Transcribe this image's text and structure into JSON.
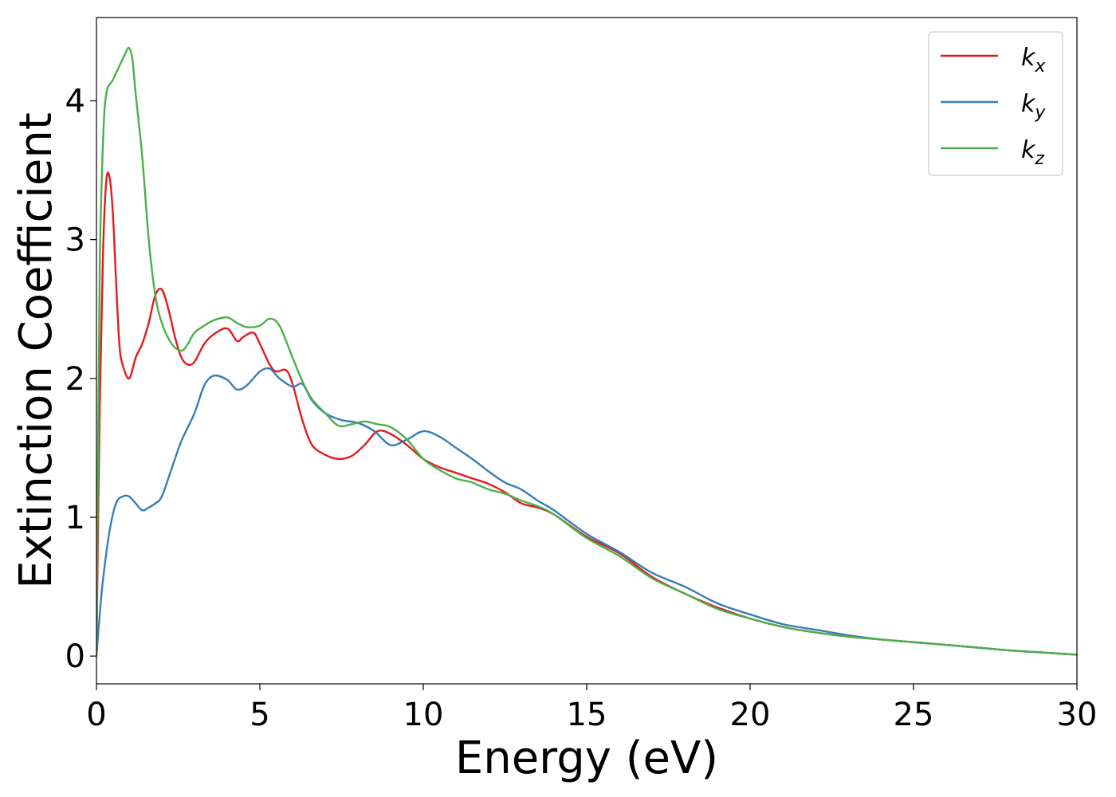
{
  "chart_data": {
    "type": "line",
    "title": "",
    "xlabel": "Energy (eV)",
    "ylabel": "Extinction Coefficient",
    "xlim": [
      0,
      30
    ],
    "ylim": [
      -0.2,
      4.6
    ],
    "xticks": [
      0,
      5,
      10,
      15,
      20,
      25,
      30
    ],
    "yticks": [
      0,
      1,
      2,
      3,
      4
    ],
    "xtick_labels": [
      "0",
      "5",
      "10",
      "15",
      "20",
      "25",
      "30"
    ],
    "ytick_labels": [
      "0",
      "1",
      "2",
      "3",
      "4"
    ],
    "grid": false,
    "legend_position": "top-right",
    "series": [
      {
        "name": "k_x",
        "label_base": "k",
        "label_sub": "x",
        "color": "#e41a1c",
        "x": [
          0,
          0.1,
          0.2,
          0.3,
          0.4,
          0.5,
          0.6,
          0.7,
          0.8,
          1.0,
          1.2,
          1.4,
          1.6,
          1.8,
          2.0,
          2.2,
          2.4,
          2.6,
          2.8,
          3.0,
          3.3,
          3.6,
          4.0,
          4.3,
          4.5,
          4.8,
          5.0,
          5.3,
          5.5,
          5.8,
          6.0,
          6.3,
          6.6,
          7.0,
          7.4,
          7.8,
          8.2,
          8.6,
          9.0,
          9.5,
          10.0,
          10.5,
          11.0,
          11.5,
          12.0,
          12.5,
          13.0,
          13.5,
          14.0,
          15.0,
          16.0,
          17.0,
          18.0,
          19.0,
          20.0,
          21.0,
          22.0,
          23.0,
          24.0,
          25.0,
          26.0,
          27.0,
          28.0,
          29.0,
          30.0
        ],
        "y": [
          0,
          1.8,
          2.9,
          3.42,
          3.45,
          3.2,
          2.7,
          2.25,
          2.1,
          2.0,
          2.15,
          2.25,
          2.4,
          2.6,
          2.64,
          2.5,
          2.3,
          2.15,
          2.1,
          2.12,
          2.25,
          2.32,
          2.36,
          2.27,
          2.3,
          2.33,
          2.25,
          2.1,
          2.05,
          2.06,
          1.96,
          1.7,
          1.52,
          1.45,
          1.42,
          1.44,
          1.52,
          1.62,
          1.6,
          1.52,
          1.42,
          1.36,
          1.32,
          1.28,
          1.24,
          1.18,
          1.1,
          1.07,
          1.02,
          0.86,
          0.74,
          0.57,
          0.45,
          0.35,
          0.27,
          0.21,
          0.17,
          0.14,
          0.12,
          0.1,
          0.08,
          0.06,
          0.04,
          0.025,
          0.01
        ]
      },
      {
        "name": "k_y",
        "label_base": "k",
        "label_sub": "y",
        "color": "#377eb8",
        "x": [
          0,
          0.1,
          0.2,
          0.4,
          0.6,
          0.8,
          1.0,
          1.2,
          1.4,
          1.6,
          1.8,
          2.0,
          2.3,
          2.6,
          3.0,
          3.3,
          3.6,
          4.0,
          4.3,
          4.6,
          5.0,
          5.3,
          5.6,
          6.0,
          6.3,
          6.6,
          7.0,
          7.5,
          8.0,
          8.5,
          9.0,
          9.5,
          10.0,
          10.5,
          11.0,
          11.5,
          12.0,
          12.5,
          13.0,
          13.5,
          14.0,
          15.0,
          16.0,
          17.0,
          18.0,
          19.0,
          20.0,
          21.0,
          22.0,
          23.0,
          24.0,
          25.0,
          26.0,
          27.0,
          28.0,
          29.0,
          30.0
        ],
        "y": [
          0,
          0.3,
          0.55,
          0.9,
          1.1,
          1.15,
          1.15,
          1.1,
          1.05,
          1.07,
          1.1,
          1.15,
          1.35,
          1.55,
          1.75,
          1.95,
          2.02,
          1.99,
          1.92,
          1.95,
          2.05,
          2.07,
          2.0,
          1.94,
          1.96,
          1.84,
          1.75,
          1.7,
          1.68,
          1.62,
          1.52,
          1.56,
          1.62,
          1.58,
          1.5,
          1.42,
          1.33,
          1.25,
          1.2,
          1.12,
          1.05,
          0.88,
          0.75,
          0.6,
          0.5,
          0.38,
          0.3,
          0.23,
          0.19,
          0.15,
          0.12,
          0.1,
          0.08,
          0.06,
          0.04,
          0.025,
          0.01
        ]
      },
      {
        "name": "k_z",
        "label_base": "k",
        "label_sub": "z",
        "color": "#4daf4a",
        "x": [
          0,
          0.05,
          0.1,
          0.2,
          0.3,
          0.5,
          0.7,
          0.9,
          1.0,
          1.1,
          1.2,
          1.4,
          1.6,
          1.8,
          2.0,
          2.3,
          2.6,
          2.8,
          3.0,
          3.3,
          3.6,
          4.0,
          4.3,
          4.6,
          5.0,
          5.3,
          5.6,
          6.0,
          6.3,
          6.6,
          7.0,
          7.4,
          7.8,
          8.2,
          8.6,
          9.0,
          9.5,
          10.0,
          10.5,
          11.0,
          11.5,
          12.0,
          12.5,
          13.0,
          13.5,
          14.0,
          15.0,
          16.0,
          17.0,
          18.0,
          19.0,
          20.0,
          21.0,
          22.0,
          23.0,
          24.0,
          25.0,
          26.0,
          27.0,
          28.0,
          29.0,
          30.0
        ],
        "y": [
          0,
          1.5,
          2.8,
          3.7,
          4.05,
          4.15,
          4.25,
          4.35,
          4.38,
          4.3,
          4.05,
          3.6,
          3.0,
          2.6,
          2.4,
          2.25,
          2.2,
          2.25,
          2.33,
          2.38,
          2.42,
          2.44,
          2.4,
          2.37,
          2.38,
          2.43,
          2.38,
          2.15,
          1.98,
          1.85,
          1.75,
          1.66,
          1.67,
          1.69,
          1.67,
          1.65,
          1.56,
          1.42,
          1.34,
          1.28,
          1.25,
          1.2,
          1.17,
          1.12,
          1.08,
          1.02,
          0.85,
          0.72,
          0.56,
          0.45,
          0.34,
          0.27,
          0.21,
          0.17,
          0.14,
          0.12,
          0.1,
          0.08,
          0.06,
          0.04,
          0.025,
          0.01
        ]
      }
    ]
  }
}
